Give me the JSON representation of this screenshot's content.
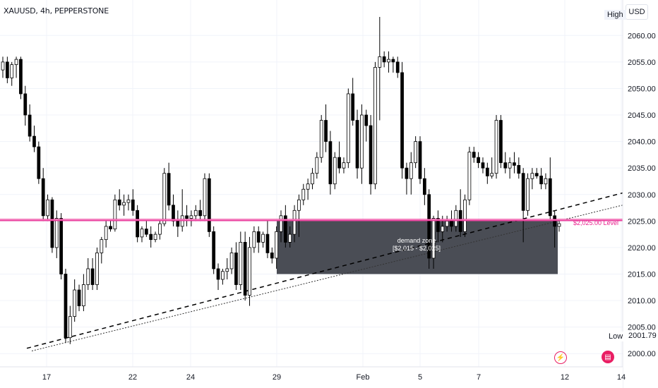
{
  "header": {
    "title": "XAUUSD, 4h, PEPPERSTONE",
    "currency_button": "USD"
  },
  "price_axis": {
    "ticks": [
      "2060.00",
      "2055.00",
      "2050.00",
      "2045.00",
      "2040.00",
      "2035.00",
      "2030.00",
      "2025.00",
      "2020.00",
      "2015.00",
      "2010.00",
      "2005.00",
      "2000.00"
    ],
    "high_label": "High",
    "low_label": "Low",
    "low_value": "2001.79"
  },
  "time_axis": {
    "ticks": [
      "17",
      "22",
      "24",
      "29",
      "Feb",
      "5",
      "7",
      "12",
      "14"
    ]
  },
  "annotations": {
    "level_label": "$2,025.00 Level",
    "zone_line1": "demand zone",
    "zone_line2": "[$2,015 - $2,025]"
  },
  "colors": {
    "level_line": "#e91e8c",
    "zone_fill": "#4a4d55",
    "candle_up": "#ffffff",
    "candle_down": "#000000",
    "grid": "#f0f3fa"
  },
  "icons": {
    "flash": "lightning-icon",
    "calendar": "economic-events-icon"
  },
  "chart_data": {
    "type": "candlestick",
    "ylim": [
      1997.5,
      2063.5
    ],
    "high": 2063.5,
    "low": 2001.79,
    "level": 2025.0,
    "demand_zone": [
      2015,
      2025
    ],
    "candles": [
      [
        2053.5,
        2056,
        2052,
        2055
      ],
      [
        2055,
        2056,
        2051,
        2052
      ],
      [
        2052,
        2055,
        2050.5,
        2054.5
      ],
      [
        2054.5,
        2056,
        2052,
        2055.5
      ],
      [
        2055.5,
        2056,
        2048,
        2049
      ],
      [
        2049,
        2050.5,
        2043,
        2045
      ],
      [
        2045,
        2047,
        2040,
        2041
      ],
      [
        2041,
        2043,
        2038,
        2039
      ],
      [
        2039,
        2040,
        2032,
        2033
      ],
      [
        2033,
        2035,
        2025,
        2026
      ],
      [
        2026,
        2030,
        2025,
        2029
      ],
      [
        2029,
        2029.5,
        2019,
        2020
      ],
      [
        2020,
        2027,
        2018,
        2025.5
      ],
      [
        2025.5,
        2026.5,
        2014,
        2015
      ],
      [
        2015,
        2016,
        2002,
        2003
      ],
      [
        2003,
        2009,
        2001.79,
        2007
      ],
      [
        2007,
        2014,
        2006,
        2012
      ],
      [
        2012,
        2013,
        2008,
        2009
      ],
      [
        2009,
        2015,
        2008,
        2013
      ],
      [
        2013,
        2018,
        2012,
        2016
      ],
      [
        2016,
        2018,
        2012,
        2013
      ],
      [
        2013,
        2020,
        2012,
        2019
      ],
      [
        2019,
        2022,
        2017,
        2021.5
      ],
      [
        2021.5,
        2025,
        2020,
        2024
      ],
      [
        2024,
        2025,
        2023,
        2023.5
      ],
      [
        2023.5,
        2030,
        2023,
        2029
      ],
      [
        2029,
        2031,
        2027,
        2028
      ],
      [
        2028,
        2030,
        2026,
        2028.5
      ],
      [
        2028.5,
        2030,
        2027,
        2029
      ],
      [
        2029,
        2031,
        2026,
        2027
      ],
      [
        2027,
        2028,
        2021,
        2022
      ],
      [
        2022,
        2024,
        2021,
        2023.5
      ],
      [
        2023.5,
        2025,
        2022,
        2022.5
      ],
      [
        2022.5,
        2024,
        2020,
        2021.5
      ],
      [
        2021.5,
        2023,
        2021,
        2022.5
      ],
      [
        2022.5,
        2025,
        2021.5,
        2024.5
      ],
      [
        2024.5,
        2035,
        2024,
        2034
      ],
      [
        2034,
        2036,
        2027,
        2028
      ],
      [
        2028,
        2030,
        2024,
        2025
      ],
      [
        2025,
        2027,
        2022,
        2024
      ],
      [
        2024,
        2031,
        2023,
        2026
      ],
      [
        2026,
        2028,
        2024,
        2025.5
      ],
      [
        2025.5,
        2027,
        2024,
        2026
      ],
      [
        2026,
        2028,
        2025,
        2027
      ],
      [
        2027,
        2029,
        2025,
        2026
      ],
      [
        2026,
        2034,
        2025,
        2033
      ],
      [
        2033,
        2034,
        2022,
        2023
      ],
      [
        2023,
        2024,
        2015,
        2016
      ],
      [
        2016,
        2017,
        2012,
        2014
      ],
      [
        2014,
        2016,
        2013,
        2015.5
      ],
      [
        2015.5,
        2018,
        2014,
        2016
      ],
      [
        2016,
        2020,
        2015,
        2019
      ],
      [
        2019,
        2021,
        2012,
        2013
      ],
      [
        2013,
        2023,
        2012,
        2021
      ],
      [
        2021,
        2023,
        2010,
        2011
      ],
      [
        2011,
        2022,
        2009,
        2020
      ],
      [
        2020,
        2024,
        2019,
        2023
      ],
      [
        2023,
        2024,
        2019,
        2021
      ],
      [
        2021,
        2023,
        2020,
        2022.5
      ],
      [
        2022.5,
        2025,
        2018,
        2019
      ],
      [
        2019,
        2020,
        2017,
        2018
      ],
      [
        2018,
        2024,
        2016,
        2023
      ],
      [
        2023,
        2027,
        2021,
        2026
      ],
      [
        2026,
        2028,
        2020,
        2021
      ],
      [
        2021,
        2024,
        2020,
        2022.5
      ],
      [
        2022.5,
        2028,
        2021,
        2027
      ],
      [
        2027,
        2030,
        2022,
        2029
      ],
      [
        2029,
        2032,
        2028,
        2031
      ],
      [
        2031,
        2033,
        2029,
        2032
      ],
      [
        2032,
        2035,
        2031,
        2034
      ],
      [
        2034,
        2038,
        2033,
        2037
      ],
      [
        2037,
        2045,
        2036,
        2044
      ],
      [
        2044,
        2047,
        2038,
        2040
      ],
      [
        2040,
        2042,
        2030,
        2032
      ],
      [
        2032,
        2038,
        2031,
        2037
      ],
      [
        2037,
        2040,
        2034,
        2035
      ],
      [
        2035,
        2037,
        2034,
        2036
      ],
      [
        2036,
        2050,
        2035,
        2049
      ],
      [
        2049,
        2052,
        2043,
        2044
      ],
      [
        2044,
        2046,
        2033,
        2035
      ],
      [
        2035,
        2047,
        2032,
        2045
      ],
      [
        2045,
        2046,
        2040,
        2043
      ],
      [
        2043,
        2045,
        2030,
        2032
      ],
      [
        2032,
        2055,
        2031,
        2054
      ],
      [
        2054,
        2063.5,
        2044,
        2056
      ],
      [
        2056,
        2057,
        2054,
        2055
      ],
      [
        2055,
        2057,
        2053,
        2055.5
      ],
      [
        2055.5,
        2056,
        2053,
        2055
      ],
      [
        2055,
        2056,
        2052,
        2053
      ],
      [
        2053,
        2055,
        2033,
        2035
      ],
      [
        2035,
        2036,
        2030,
        2033
      ],
      [
        2033,
        2038,
        2030,
        2036
      ],
      [
        2036,
        2041,
        2035,
        2040
      ],
      [
        2040,
        2041,
        2032,
        2033
      ],
      [
        2033,
        2035,
        2028,
        2030
      ],
      [
        2030,
        2031,
        2016,
        2018
      ],
      [
        2018,
        2026,
        2016,
        2025.5
      ],
      [
        2025.5,
        2027,
        2021,
        2023
      ],
      [
        2023,
        2026,
        2021,
        2024
      ],
      [
        2024,
        2026,
        2023,
        2025
      ],
      [
        2025,
        2027,
        2023,
        2024
      ],
      [
        2024,
        2028,
        2023,
        2027
      ],
      [
        2027,
        2031,
        2022,
        2023
      ],
      [
        2023,
        2030,
        2022,
        2029
      ],
      [
        2029,
        2039,
        2028,
        2038
      ],
      [
        2038,
        2039,
        2036,
        2037
      ],
      [
        2037,
        2038,
        2035,
        2036
      ],
      [
        2036,
        2037,
        2034,
        2035
      ],
      [
        2035,
        2036,
        2032,
        2033.5
      ],
      [
        2033.5,
        2037,
        2033,
        2034
      ],
      [
        2034,
        2045,
        2033,
        2044
      ],
      [
        2044,
        2045,
        2035,
        2036
      ],
      [
        2036,
        2038,
        2034,
        2035
      ],
      [
        2035,
        2037,
        2033,
        2036
      ],
      [
        2036,
        2038,
        2034,
        2035.5
      ],
      [
        2035.5,
        2037,
        2033,
        2034
      ],
      [
        2034,
        2035,
        2021,
        2027
      ],
      [
        2027,
        2034,
        2026,
        2033
      ],
      [
        2033,
        2035,
        2031,
        2034
      ],
      [
        2034,
        2035,
        2033,
        2033.5
      ],
      [
        2033.5,
        2035,
        2031,
        2032
      ],
      [
        2032,
        2034,
        2031,
        2033
      ],
      [
        2033,
        2037,
        2025,
        2026
      ],
      [
        2026,
        2027,
        2020,
        2024
      ],
      [
        2024,
        2025,
        2023,
        2024.5
      ]
    ]
  }
}
